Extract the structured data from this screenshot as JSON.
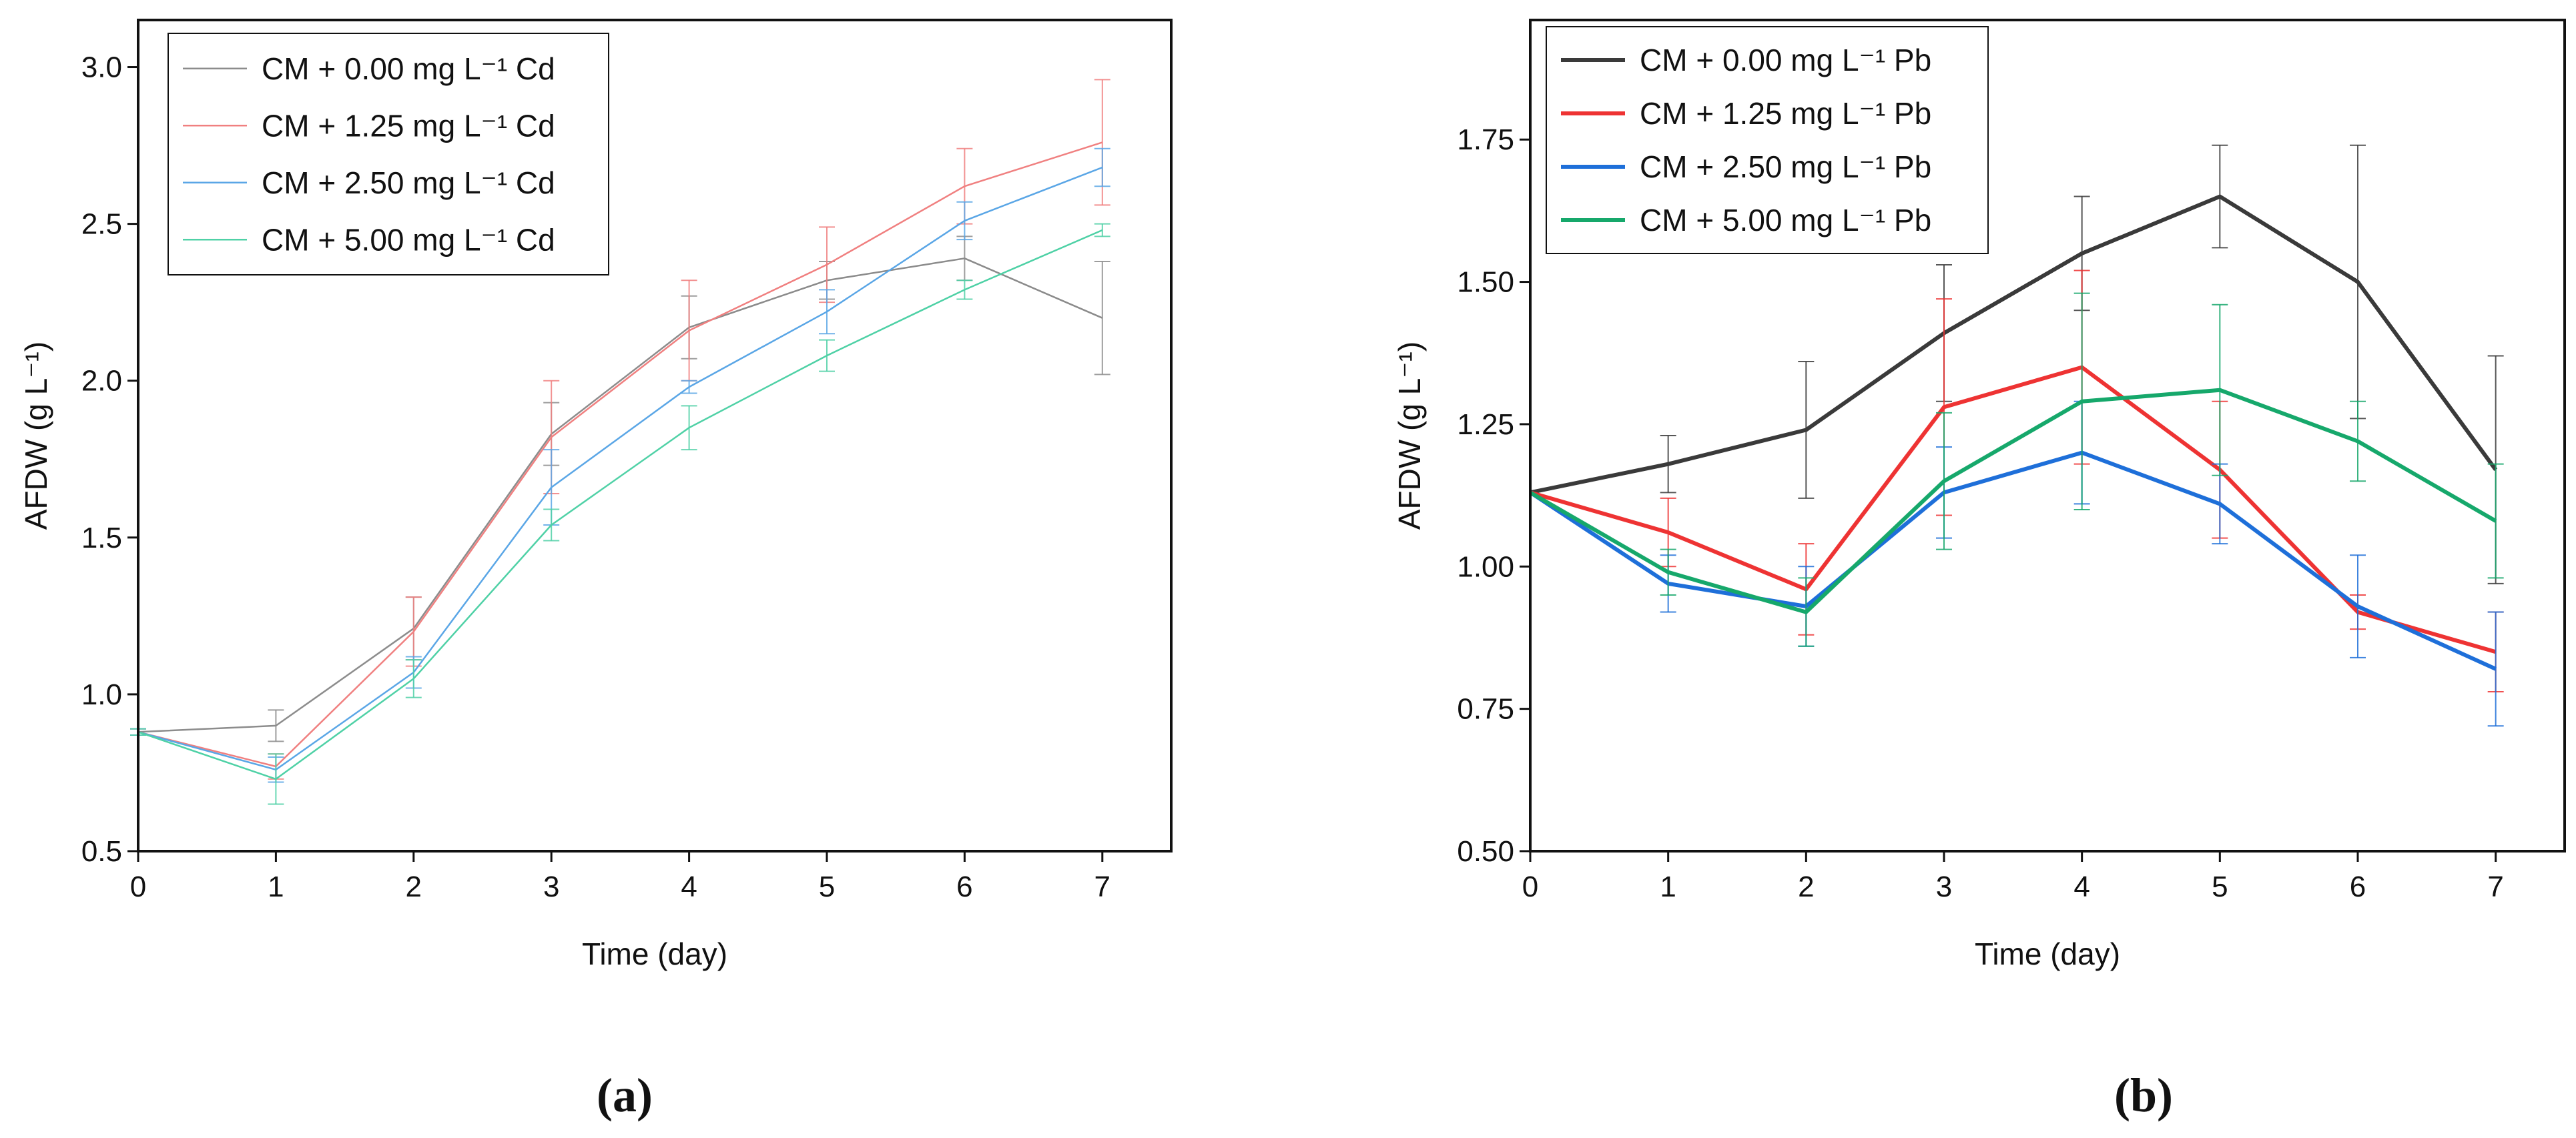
{
  "chart_data": [
    {
      "type": "line",
      "panel_label": "(a)",
      "xlabel": "Time (day)",
      "ylabel": "AFDW (g L⁻¹)",
      "x": [
        0,
        1,
        2,
        3,
        4,
        5,
        6,
        7
      ],
      "xlim": [
        0,
        7.5
      ],
      "ylim": [
        0.5,
        3.15
      ],
      "yticks": [
        0.5,
        1.0,
        1.5,
        2.0,
        2.5,
        3.0
      ],
      "ytick_labels": [
        "0.5",
        "1.0",
        "1.5",
        "2.0",
        "2.5",
        "3.0"
      ],
      "xtick_labels": [
        "0",
        "1",
        "2",
        "3",
        "4",
        "5",
        "6",
        "7"
      ],
      "legend_position": "top-left",
      "line_width": "thin",
      "series": [
        {
          "name": "CM + 0.00 mg L⁻¹ Cd",
          "color": "#8c8c8c",
          "values": [
            0.88,
            0.9,
            1.21,
            1.83,
            2.17,
            2.32,
            2.39,
            2.2
          ],
          "errors": [
            0.01,
            0.05,
            0.1,
            0.1,
            0.1,
            0.06,
            0.07,
            0.18
          ]
        },
        {
          "name": "CM + 1.25 mg L⁻¹ Cd",
          "color": "#f08080",
          "values": [
            0.88,
            0.77,
            1.2,
            1.82,
            2.16,
            2.37,
            2.62,
            2.76
          ],
          "errors": [
            0.01,
            0.04,
            0.11,
            0.18,
            0.16,
            0.12,
            0.12,
            0.2
          ]
        },
        {
          "name": "CM + 2.50 mg L⁻¹ Cd",
          "color": "#5aa6e6",
          "values": [
            0.88,
            0.76,
            1.07,
            1.66,
            1.98,
            2.22,
            2.51,
            2.68
          ],
          "errors": [
            0.01,
            0.04,
            0.05,
            0.12,
            0.02,
            0.07,
            0.06,
            0.06
          ]
        },
        {
          "name": "CM + 5.00 mg L⁻¹ Cd",
          "color": "#4fd1a6",
          "values": [
            0.88,
            0.73,
            1.05,
            1.54,
            1.85,
            2.08,
            2.29,
            2.48
          ],
          "errors": [
            0.01,
            0.08,
            0.06,
            0.05,
            0.07,
            0.05,
            0.03,
            0.02
          ]
        }
      ]
    },
    {
      "type": "line",
      "panel_label": "(b)",
      "xlabel": "Time (day)",
      "ylabel": "AFDW (g L⁻¹)",
      "x": [
        0,
        1,
        2,
        3,
        4,
        5,
        6,
        7
      ],
      "xlim": [
        0,
        7.5
      ],
      "ylim": [
        0.5,
        1.96
      ],
      "yticks": [
        0.5,
        0.75,
        1.0,
        1.25,
        1.5,
        1.75
      ],
      "ytick_labels": [
        "0.50",
        "0.75",
        "1.00",
        "1.25",
        "1.50",
        "1.75"
      ],
      "xtick_labels": [
        "0",
        "1",
        "2",
        "3",
        "4",
        "5",
        "6",
        "7"
      ],
      "legend_position": "top-left",
      "line_width": "thick",
      "series": [
        {
          "name": "CM + 0.00 mg L⁻¹ Pb",
          "color": "#3a3a3a",
          "values": [
            1.13,
            1.18,
            1.24,
            1.41,
            1.55,
            1.65,
            1.5,
            1.17
          ],
          "errors": [
            0.0,
            0.05,
            0.12,
            0.12,
            0.1,
            0.09,
            0.24,
            0.2
          ]
        },
        {
          "name": "CM + 1.25 mg L⁻¹ Pb",
          "color": "#ee3333",
          "values": [
            1.13,
            1.06,
            0.96,
            1.28,
            1.35,
            1.17,
            0.92,
            0.85
          ],
          "errors": [
            0.0,
            0.06,
            0.08,
            0.19,
            0.17,
            0.12,
            0.03,
            0.07
          ]
        },
        {
          "name": "CM + 2.50 mg L⁻¹ Pb",
          "color": "#1e6fd9",
          "values": [
            1.13,
            0.97,
            0.93,
            1.13,
            1.2,
            1.11,
            0.93,
            0.82
          ],
          "errors": [
            0.0,
            0.05,
            0.07,
            0.08,
            0.09,
            0.07,
            0.09,
            0.1
          ]
        },
        {
          "name": "CM + 5.00 mg L⁻¹ Pb",
          "color": "#16a86b",
          "values": [
            1.13,
            0.99,
            0.92,
            1.15,
            1.29,
            1.31,
            1.22,
            1.08
          ],
          "errors": [
            0.0,
            0.04,
            0.06,
            0.12,
            0.19,
            0.15,
            0.07,
            0.1
          ]
        }
      ]
    }
  ]
}
